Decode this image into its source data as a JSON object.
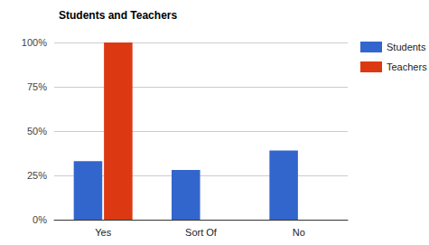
{
  "chart_data": {
    "type": "bar",
    "title": "Students and Teachers",
    "categories": [
      "Yes",
      "Sort Of",
      "No"
    ],
    "series": [
      {
        "name": "Students",
        "color": "#3366cc",
        "values": [
          33,
          28,
          39
        ]
      },
      {
        "name": "Teachers",
        "color": "#dc3912",
        "values": [
          100,
          0,
          0
        ]
      }
    ],
    "ylim": [
      0,
      100
    ],
    "yticks": [
      {
        "value": 0,
        "label": "0%"
      },
      {
        "value": 25,
        "label": "25%"
      },
      {
        "value": 50,
        "label": "50%"
      },
      {
        "value": 75,
        "label": "75%"
      },
      {
        "value": 100,
        "label": "100%"
      }
    ],
    "grid": true,
    "legend": "top-right"
  }
}
